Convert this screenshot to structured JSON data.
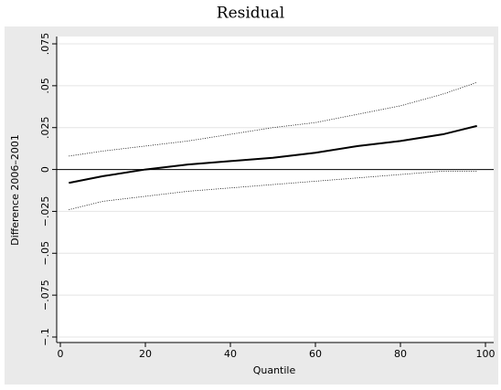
{
  "chart_data": {
    "type": "line",
    "title": "Residual",
    "x_label": "Quantile",
    "y_label": "Difference 2006–2001",
    "x": [
      2,
      10,
      20,
      30,
      40,
      50,
      60,
      70,
      80,
      90,
      98
    ],
    "series": [
      {
        "color": "#000000",
        "dash": "solid",
        "values": [
          -0.008,
          -0.004,
          0,
          0.003,
          0.005,
          0.007,
          0.01,
          0.014,
          0.017,
          0.021,
          0.026
        ]
      },
      {
        "color": "#000000",
        "dash": "dotted",
        "values": [
          0.008,
          0.011,
          0.014,
          0.017,
          0.021,
          0.025,
          0.028,
          0.033,
          0.038,
          0.045,
          0.052
        ]
      },
      {
        "color": "#000000",
        "dash": "dotted",
        "values": [
          -0.024,
          -0.019,
          -0.016,
          -0.013,
          -0.011,
          -0.009,
          -0.007,
          -0.005,
          -0.003,
          -0.001,
          -0.001
        ]
      }
    ],
    "reference_line": 0,
    "xlim": [
      0,
      100
    ],
    "xticks": [
      0,
      20,
      40,
      60,
      80,
      100
    ],
    "ylim": [
      -0.1,
      0.075
    ],
    "yticks": [
      {
        "value": -0.1,
        "label": "−.1"
      },
      {
        "value": -0.075,
        "label": "−.075"
      },
      {
        "value": -0.05,
        "label": "−.05"
      },
      {
        "value": -0.025,
        "label": "−.025"
      },
      0,
      {
        "value": 0.025,
        "label": ".025"
      },
      {
        "value": 0.05,
        "label": ".05"
      },
      {
        "value": 0.075,
        "label": ".075"
      }
    ],
    "grid": true
  }
}
